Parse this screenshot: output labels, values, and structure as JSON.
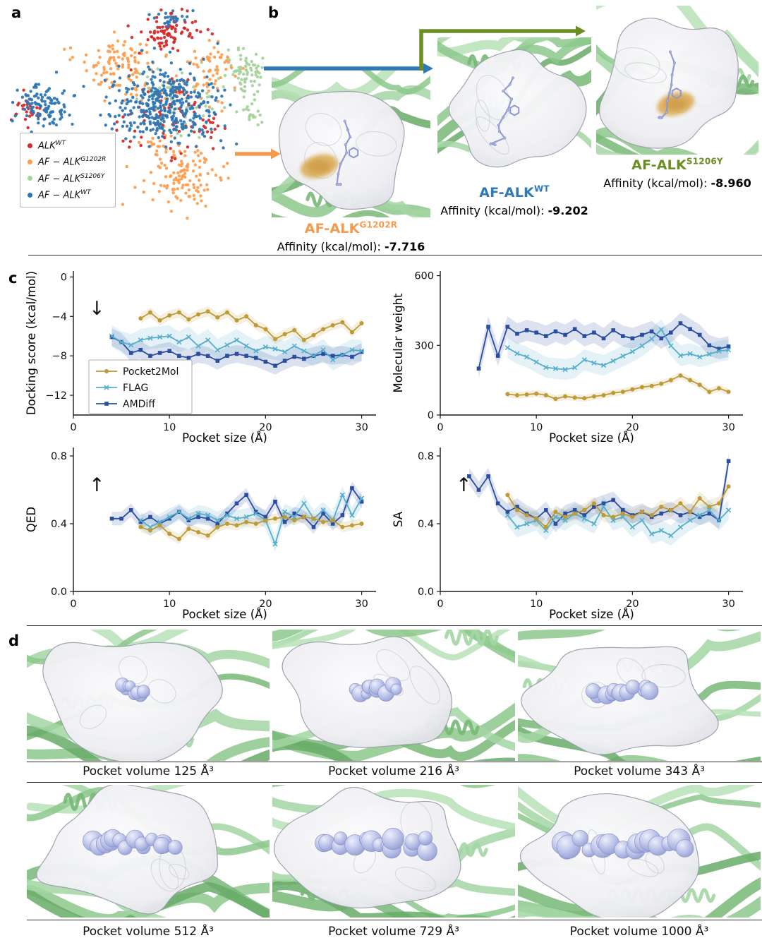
{
  "figure": {
    "panels": {
      "a": "a",
      "b": "b",
      "c": "c",
      "d": "d"
    }
  },
  "colors": {
    "scatter": {
      "red": "#d62b2b",
      "orange": "#ff9e4f",
      "green": "#a5d29c",
      "blue": "#2e77b5"
    },
    "series": {
      "Pocket2Mol": "#bd9a35",
      "FLAG": "#56aecb",
      "AMDiff": "#2b4da0"
    }
  },
  "panel_a": {
    "legend": [
      {
        "base": "ALK",
        "sup": "WT",
        "color_key": "red"
      },
      {
        "base": "AF − ALK",
        "sup": "G1202R",
        "color_key": "orange"
      },
      {
        "base": "AF − ALK",
        "sup": "S1206Y",
        "color_key": "green"
      },
      {
        "base": "AF − ALK",
        "sup": "WT",
        "color_key": "blue"
      }
    ]
  },
  "panel_b": {
    "structures": [
      {
        "name": "AF-ALK",
        "sup": "G1202R",
        "color": "#f59b4f",
        "affinity_label": "Affinity (kcal/mol):",
        "affinity_value": "-7.716"
      },
      {
        "name": "AF-ALK",
        "sup": "WT",
        "color": "#2e79b8",
        "affinity_label": "Affinity (kcal/mol):",
        "affinity_value": "-9.202"
      },
      {
        "name": "AF-ALK",
        "sup": "S1206Y",
        "color": "#6b8e23",
        "affinity_label": "Affinity (kcal/mol):",
        "affinity_value": "-8.960"
      }
    ]
  },
  "chart_data": [
    {
      "type": "scatter",
      "title": "t-SNE embedding of pockets/molecules (panel a)",
      "legend_entries": [
        "ALK WT",
        "AF-ALK G1202R",
        "AF-ALK S1206Y",
        "AF-ALK WT"
      ],
      "clusters": [
        {
          "color": "green",
          "cx": 0.915,
          "cy": 0.285,
          "sx": 0.05,
          "sy": 0.055,
          "n": 80
        },
        {
          "color": "green",
          "cx": 0.95,
          "cy": 0.5,
          "sx": 0.028,
          "sy": 0.035,
          "n": 22
        },
        {
          "color": "green",
          "cx": 0.66,
          "cy": 0.43,
          "sx": 0.09,
          "sy": 0.08,
          "n": 60
        },
        {
          "color": "orange",
          "cx": 0.42,
          "cy": 0.26,
          "sx": 0.075,
          "sy": 0.055,
          "n": 90
        },
        {
          "color": "orange",
          "cx": 0.79,
          "cy": 0.3,
          "sx": 0.045,
          "sy": 0.06,
          "n": 55
        },
        {
          "color": "orange",
          "cx": 0.56,
          "cy": 0.38,
          "sx": 0.1,
          "sy": 0.055,
          "n": 45
        },
        {
          "color": "orange",
          "cx": 0.68,
          "cy": 0.78,
          "sx": 0.075,
          "sy": 0.075,
          "n": 120
        },
        {
          "color": "orange",
          "cx": 0.595,
          "cy": 0.625,
          "sx": 0.04,
          "sy": 0.04,
          "n": 20
        },
        {
          "color": "red",
          "cx": 0.635,
          "cy": 0.115,
          "sx": 0.055,
          "sy": 0.05,
          "n": 85
        },
        {
          "color": "red",
          "cx": 0.6,
          "cy": 0.5,
          "sx": 0.1,
          "sy": 0.09,
          "n": 70
        },
        {
          "color": "red",
          "cx": 0.085,
          "cy": 0.47,
          "sx": 0.028,
          "sy": 0.038,
          "n": 28
        },
        {
          "color": "red",
          "cx": 0.77,
          "cy": 0.55,
          "sx": 0.03,
          "sy": 0.04,
          "n": 15
        },
        {
          "color": "blue",
          "cx": 0.635,
          "cy": 0.06,
          "sx": 0.035,
          "sy": 0.022,
          "n": 25
        },
        {
          "color": "blue",
          "cx": 0.6,
          "cy": 0.46,
          "sx": 0.105,
          "sy": 0.095,
          "n": 380
        },
        {
          "color": "blue",
          "cx": 0.155,
          "cy": 0.46,
          "sx": 0.055,
          "sy": 0.052,
          "n": 110
        }
      ]
    },
    {
      "type": "line",
      "ylabel": "Docking score (kcal/mol)",
      "xlabel": "Pocket size (Å)",
      "xlim": [
        0,
        31.5
      ],
      "ylim": [
        -14,
        0.6
      ],
      "xticks": [
        0,
        10,
        20,
        30
      ],
      "xtick_labels": [
        "0",
        "10",
        "20",
        "30"
      ],
      "yticks": [
        0,
        -4,
        -8,
        -12
      ],
      "ytick_labels": [
        "0",
        "−4",
        "−8",
        "−12"
      ],
      "annotation": "↓",
      "legend": true,
      "series": [
        {
          "name": "Pocket2Mol",
          "marker": "circle",
          "band": 0.5,
          "x": [
            7,
            8,
            9,
            10,
            11,
            12,
            13,
            14,
            15,
            16,
            17,
            18,
            19,
            20,
            21,
            22,
            23,
            24,
            25,
            26,
            27,
            28,
            29,
            30
          ],
          "y": [
            -4.2,
            -3.6,
            -4.4,
            -3.9,
            -3.6,
            -4.3,
            -3.8,
            -3.5,
            -4.1,
            -3.6,
            -4.4,
            -4.0,
            -4.9,
            -5.3,
            -6.3,
            -5.8,
            -5.4,
            -6.4,
            -5.9,
            -5.3,
            -4.9,
            -4.6,
            -5.6,
            -4.7
          ]
        },
        {
          "name": "FLAG",
          "marker": "x",
          "band": 1.1,
          "x": [
            4,
            5,
            6,
            7,
            8,
            9,
            10,
            11,
            12,
            13,
            14,
            15,
            16,
            17,
            18,
            19,
            20,
            21,
            22,
            23,
            24,
            25,
            26,
            27,
            28,
            29,
            30
          ],
          "y": [
            -6.0,
            -6.6,
            -6.9,
            -6.4,
            -6.2,
            -6.1,
            -6.0,
            -6.6,
            -6.1,
            -7.0,
            -6.4,
            -7.4,
            -6.9,
            -6.4,
            -7.0,
            -7.5,
            -7.1,
            -7.3,
            -7.6,
            -7.0,
            -7.5,
            -8.0,
            -7.4,
            -8.4,
            -7.9,
            -7.4,
            -7.5
          ]
        },
        {
          "name": "AMDiff",
          "marker": "square",
          "band": 0.9,
          "x": [
            4,
            5,
            6,
            7,
            8,
            9,
            10,
            11,
            12,
            13,
            14,
            15,
            16,
            17,
            18,
            19,
            20,
            21,
            22,
            23,
            24,
            25,
            26,
            27,
            28,
            29,
            30
          ],
          "y": [
            -6.1,
            -6.6,
            -7.7,
            -7.4,
            -8.0,
            -7.7,
            -7.5,
            -8.0,
            -8.2,
            -7.8,
            -8.0,
            -8.5,
            -8.0,
            -7.8,
            -8.0,
            -8.2,
            -8.6,
            -9.0,
            -8.5,
            -8.1,
            -8.3,
            -8.0,
            -7.8,
            -8.0,
            -7.9,
            -8.1,
            -7.6
          ]
        }
      ]
    },
    {
      "type": "line",
      "ylabel": "Molecular weight",
      "xlabel": "Pocket size (Å)",
      "xlim": [
        0,
        31.5
      ],
      "ylim": [
        0,
        620
      ],
      "xticks": [
        0,
        10,
        20,
        30
      ],
      "xtick_labels": [
        "0",
        "10",
        "20",
        "30"
      ],
      "yticks": [
        0,
        300,
        600
      ],
      "ytick_labels": [
        "0",
        "300",
        "600"
      ],
      "annotation": null,
      "legend": false,
      "series": [
        {
          "name": "Pocket2Mol",
          "marker": "circle",
          "band": 15,
          "x": [
            7,
            8,
            9,
            10,
            11,
            12,
            13,
            14,
            15,
            16,
            17,
            18,
            19,
            20,
            21,
            22,
            23,
            24,
            25,
            26,
            27,
            28,
            29,
            30
          ],
          "y": [
            90,
            85,
            88,
            92,
            85,
            70,
            80,
            75,
            72,
            80,
            85,
            95,
            100,
            110,
            120,
            125,
            135,
            150,
            170,
            150,
            130,
            100,
            115,
            100
          ]
        },
        {
          "name": "FLAG",
          "marker": "x",
          "band": 45,
          "x": [
            7,
            8,
            9,
            10,
            11,
            12,
            13,
            14,
            15,
            16,
            17,
            18,
            19,
            20,
            21,
            22,
            23,
            24,
            25,
            26,
            27,
            28,
            29,
            30
          ],
          "y": [
            290,
            265,
            250,
            228,
            205,
            200,
            196,
            204,
            238,
            224,
            214,
            233,
            254,
            273,
            298,
            328,
            368,
            298,
            256,
            264,
            250,
            262,
            275,
            280
          ]
        },
        {
          "name": "AMDiff",
          "marker": "square",
          "band": 45,
          "x": [
            4,
            5,
            6,
            7,
            8,
            9,
            10,
            11,
            12,
            13,
            14,
            15,
            16,
            17,
            18,
            19,
            20,
            21,
            22,
            23,
            24,
            25,
            26,
            27,
            28,
            29,
            30
          ],
          "y": [
            200,
            380,
            255,
            380,
            350,
            365,
            355,
            340,
            360,
            345,
            370,
            340,
            355,
            330,
            365,
            340,
            330,
            345,
            360,
            330,
            355,
            395,
            370,
            345,
            300,
            285,
            295
          ]
        }
      ]
    },
    {
      "type": "line",
      "ylabel": "QED",
      "xlabel": "Pocket size (Å)",
      "xlim": [
        0,
        31.5
      ],
      "ylim": [
        0,
        0.85
      ],
      "xticks": [
        0,
        10,
        20,
        30
      ],
      "xtick_labels": [
        "0",
        "10",
        "20",
        "30"
      ],
      "yticks": [
        0,
        0.4,
        0.8
      ],
      "ytick_labels": [
        "0.0",
        "0.4",
        "0.8"
      ],
      "annotation": "↑",
      "legend": false,
      "series": [
        {
          "name": "Pocket2Mol",
          "marker": "circle",
          "band": 0.03,
          "x": [
            7,
            8,
            9,
            10,
            11,
            12,
            13,
            14,
            15,
            16,
            17,
            18,
            19,
            20,
            21,
            22,
            23,
            24,
            25,
            26,
            27,
            28,
            29,
            30
          ],
          "y": [
            0.38,
            0.36,
            0.39,
            0.34,
            0.31,
            0.37,
            0.35,
            0.33,
            0.38,
            0.4,
            0.39,
            0.41,
            0.4,
            0.42,
            0.43,
            0.44,
            0.42,
            0.44,
            0.43,
            0.41,
            0.42,
            0.38,
            0.39,
            0.4
          ]
        },
        {
          "name": "FLAG",
          "marker": "x",
          "band": 0.05,
          "x": [
            7,
            8,
            9,
            10,
            11,
            12,
            13,
            14,
            15,
            16,
            17,
            18,
            19,
            20,
            21,
            22,
            23,
            24,
            25,
            26,
            27,
            28,
            29,
            30
          ],
          "y": [
            0.42,
            0.38,
            0.41,
            0.44,
            0.47,
            0.43,
            0.46,
            0.45,
            0.42,
            0.45,
            0.43,
            0.44,
            0.46,
            0.42,
            0.28,
            0.47,
            0.44,
            0.52,
            0.43,
            0.48,
            0.42,
            0.57,
            0.45,
            0.55
          ]
        },
        {
          "name": "AMDiff",
          "marker": "square",
          "band": 0.04,
          "x": [
            4,
            5,
            6,
            7,
            8,
            9,
            10,
            11,
            12,
            13,
            14,
            15,
            16,
            17,
            18,
            19,
            20,
            21,
            22,
            23,
            24,
            25,
            26,
            27,
            28,
            29,
            30
          ],
          "y": [
            0.43,
            0.43,
            0.48,
            0.41,
            0.44,
            0.4,
            0.43,
            0.47,
            0.42,
            0.44,
            0.43,
            0.4,
            0.46,
            0.52,
            0.57,
            0.47,
            0.44,
            0.53,
            0.41,
            0.46,
            0.44,
            0.38,
            0.46,
            0.4,
            0.45,
            0.61,
            0.53
          ]
        }
      ]
    },
    {
      "type": "line",
      "ylabel": "SA",
      "xlabel": "Pocket size (Å)",
      "xlim": [
        0,
        31.5
      ],
      "ylim": [
        0,
        0.85
      ],
      "xticks": [
        0,
        10,
        20,
        30
      ],
      "xtick_labels": [
        "0",
        "10",
        "20",
        "30"
      ],
      "yticks": [
        0,
        0.4,
        0.8
      ],
      "ytick_labels": [
        "0.0",
        "0.4",
        "0.8"
      ],
      "annotation": "↑",
      "legend": false,
      "series": [
        {
          "name": "Pocket2Mol",
          "marker": "circle",
          "band": 0.04,
          "x": [
            7,
            8,
            9,
            10,
            11,
            12,
            13,
            14,
            15,
            16,
            17,
            18,
            19,
            20,
            21,
            22,
            23,
            24,
            25,
            26,
            27,
            28,
            29,
            30
          ],
          "y": [
            0.57,
            0.48,
            0.45,
            0.43,
            0.38,
            0.47,
            0.44,
            0.46,
            0.48,
            0.52,
            0.45,
            0.44,
            0.46,
            0.44,
            0.47,
            0.45,
            0.5,
            0.48,
            0.52,
            0.47,
            0.55,
            0.5,
            0.52,
            0.62
          ]
        },
        {
          "name": "FLAG",
          "marker": "x",
          "band": 0.06,
          "x": [
            7,
            8,
            9,
            10,
            11,
            12,
            13,
            14,
            15,
            16,
            17,
            18,
            19,
            20,
            21,
            22,
            23,
            24,
            25,
            26,
            27,
            28,
            29,
            30
          ],
          "y": [
            0.45,
            0.38,
            0.4,
            0.42,
            0.36,
            0.44,
            0.42,
            0.46,
            0.43,
            0.4,
            0.5,
            0.42,
            0.44,
            0.38,
            0.42,
            0.34,
            0.36,
            0.33,
            0.38,
            0.42,
            0.45,
            0.48,
            0.42,
            0.48
          ]
        },
        {
          "name": "AMDiff",
          "marker": "square",
          "band": 0.05,
          "x": [
            3,
            4,
            5,
            6,
            7,
            8,
            9,
            10,
            11,
            12,
            13,
            14,
            15,
            16,
            17,
            18,
            19,
            20,
            21,
            22,
            23,
            24,
            25,
            26,
            27,
            28,
            29,
            30
          ],
          "y": [
            0.68,
            0.6,
            0.68,
            0.52,
            0.47,
            0.5,
            0.46,
            0.43,
            0.48,
            0.4,
            0.46,
            0.48,
            0.45,
            0.5,
            0.52,
            0.54,
            0.48,
            0.45,
            0.47,
            0.44,
            0.46,
            0.48,
            0.45,
            0.47,
            0.44,
            0.46,
            0.42,
            0.77
          ]
        }
      ]
    }
  ],
  "panel_d": {
    "tiles": [
      {
        "caption": "Pocket volume  125 Å³",
        "volume": 125
      },
      {
        "caption": "Pocket volume  216 Å³",
        "volume": 216
      },
      {
        "caption": "Pocket volume 343 Å³",
        "volume": 343
      },
      {
        "caption": "Pocket volume 512 Å³",
        "volume": 512
      },
      {
        "caption": "Pocket volume 729 Å³",
        "volume": 729
      },
      {
        "caption": "Pocket volume 1000 Å³",
        "volume": 1000
      }
    ]
  }
}
